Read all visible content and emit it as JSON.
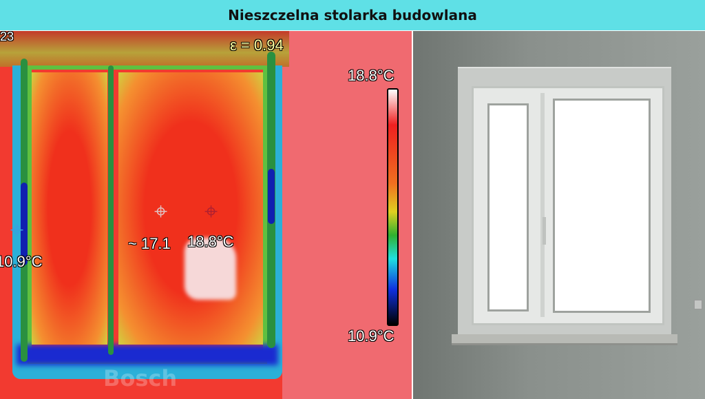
{
  "header": {
    "title": "Nieszczelna stolarka budowlana"
  },
  "thermal": {
    "corner_label": "23",
    "emissivity": "ε = 0.94",
    "scale_max": "18.8°C",
    "scale_min": "10.9°C",
    "spot_cold": "10.9°C",
    "spot_mid": "~ 17.1",
    "spot_hot": "18.8°C",
    "watermark": "Bosch"
  },
  "colors": {
    "header_bg": "#5fe0e6"
  }
}
